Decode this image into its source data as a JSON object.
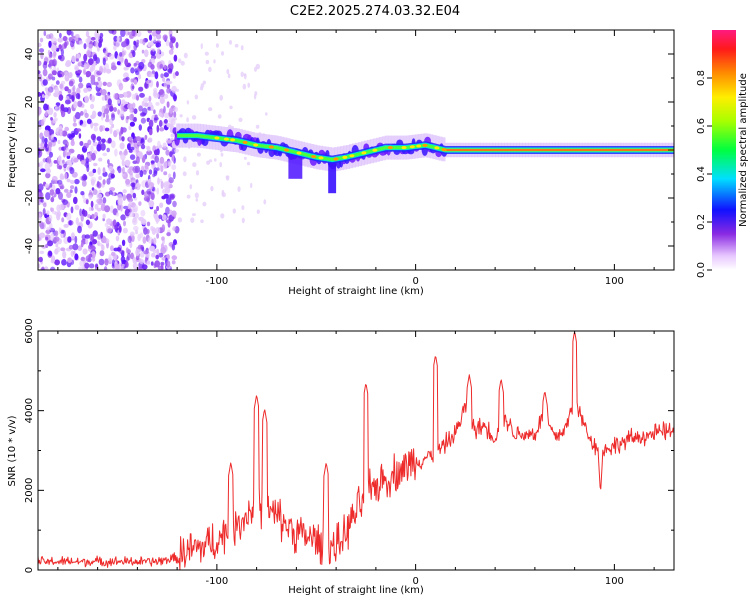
{
  "title": "C2E2.2025.274.03.32.E04",
  "colors": {
    "snr_line": "#ee2b2b",
    "axis": "#000000",
    "ridge_core": "#e8192b",
    "ridge_glow": "#ffd400"
  },
  "chart_data": [
    {
      "type": "heatmap",
      "name": "spectrogram",
      "xlabel": "Height of straight line (km)",
      "ylabel": "Frequency (Hz)",
      "xlim": [
        -190,
        130
      ],
      "ylim": [
        -50,
        50
      ],
      "x_ticks": [
        -100,
        0,
        100
      ],
      "y_ticks": [
        -40,
        -20,
        0,
        20,
        40
      ],
      "noise_region_x": [
        -190,
        -120
      ],
      "ridge": [
        {
          "x": -120,
          "y": 6
        },
        {
          "x": -110,
          "y": 6
        },
        {
          "x": -100,
          "y": 5
        },
        {
          "x": -90,
          "y": 4
        },
        {
          "x": -80,
          "y": 2
        },
        {
          "x": -70,
          "y": 1
        },
        {
          "x": -60,
          "y": -1
        },
        {
          "x": -50,
          "y": -3
        },
        {
          "x": -42,
          "y": -4
        },
        {
          "x": -35,
          "y": -3
        },
        {
          "x": -25,
          "y": -1
        },
        {
          "x": -15,
          "y": 1
        },
        {
          "x": -5,
          "y": 1
        },
        {
          "x": 5,
          "y": 2
        },
        {
          "x": 15,
          "y": 0
        },
        {
          "x": 40,
          "y": 0
        },
        {
          "x": 80,
          "y": 0
        },
        {
          "x": 130,
          "y": 0
        }
      ],
      "colorbar": {
        "label": "Normalized spectral amplitude",
        "range": [
          0,
          1
        ],
        "ticks": [
          0.0,
          0.2,
          0.4,
          0.6,
          0.8
        ],
        "tick_labels": [
          "0.0",
          "0.2",
          "0.4",
          "0.6",
          "0.8"
        ]
      }
    },
    {
      "type": "line",
      "name": "snr",
      "xlabel": "Height of straight line (km)",
      "ylabel": "SNR (10 * v/v)",
      "xlim": [
        -190,
        130
      ],
      "ylim": [
        0,
        6000
      ],
      "x_ticks": [
        -100,
        0,
        100
      ],
      "y_ticks": [
        0,
        2000,
        4000,
        6000
      ],
      "series": [
        {
          "name": "SNR",
          "envelope_x": [
            -190,
            -130,
            -120,
            -110,
            -100,
            -90,
            -80,
            -70,
            -60,
            -50,
            -40,
            -35,
            -30,
            -25,
            -20,
            -10,
            0,
            10,
            20,
            25,
            30,
            35,
            40,
            45,
            50,
            60,
            65,
            70,
            75,
            80,
            85,
            90,
            95,
            100,
            110,
            120,
            130
          ],
          "envelope_y": [
            200,
            200,
            300,
            500,
            700,
            1100,
            1600,
            1300,
            900,
            700,
            500,
            900,
            1400,
            1800,
            2100,
            2400,
            2700,
            2900,
            3400,
            4100,
            3500,
            3600,
            3300,
            3800,
            3400,
            3400,
            3900,
            3300,
            3500,
            4200,
            3600,
            3100,
            3000,
            3100,
            3300,
            3400,
            3500
          ],
          "peaks": [
            {
              "x": -80,
              "y": 4400
            },
            {
              "x": -76,
              "y": 4050
            },
            {
              "x": -93,
              "y": 2700
            },
            {
              "x": -45,
              "y": 2700
            },
            {
              "x": -25,
              "y": 4700
            },
            {
              "x": 10,
              "y": 5400
            },
            {
              "x": 27,
              "y": 4900
            },
            {
              "x": 43,
              "y": 4800
            },
            {
              "x": 65,
              "y": 4500
            },
            {
              "x": 80,
              "y": 6000
            },
            {
              "x": 93,
              "y": 1900
            }
          ]
        }
      ]
    }
  ]
}
